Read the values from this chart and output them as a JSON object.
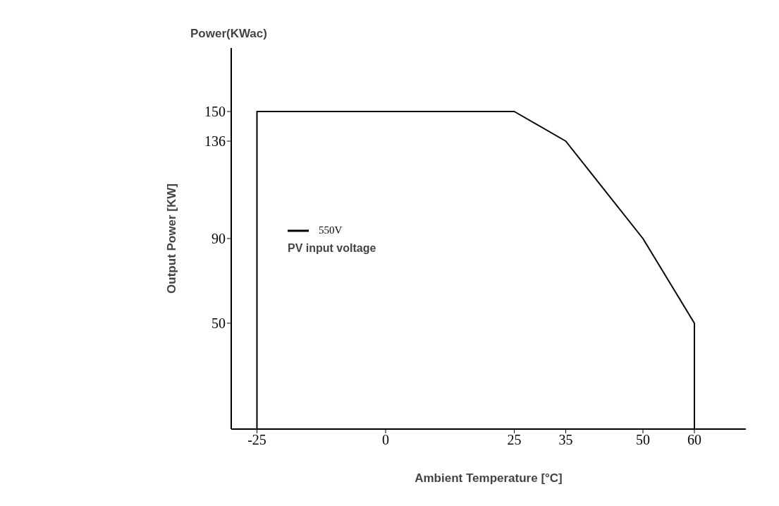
{
  "chart_data": {
    "type": "line",
    "xlabel": "Ambient Temperature [°C]",
    "ylabel": "Output Power [KW]",
    "annotations": [
      "Power(KWac)"
    ],
    "legend_title": "PV input voltage",
    "legend": "left",
    "x": [
      -25,
      -25,
      25,
      35,
      50,
      60,
      60
    ],
    "series": [
      {
        "name": "550V",
        "color": "#000000",
        "values": [
          0,
          150,
          150,
          136,
          90,
          50,
          0
        ]
      }
    ],
    "xlim": [
      -30,
      70
    ],
    "xticks": [
      -25,
      0,
      25,
      35,
      50,
      60
    ],
    "ylim": [
      0,
      180
    ],
    "yticks": [
      50,
      90,
      136,
      150
    ]
  }
}
